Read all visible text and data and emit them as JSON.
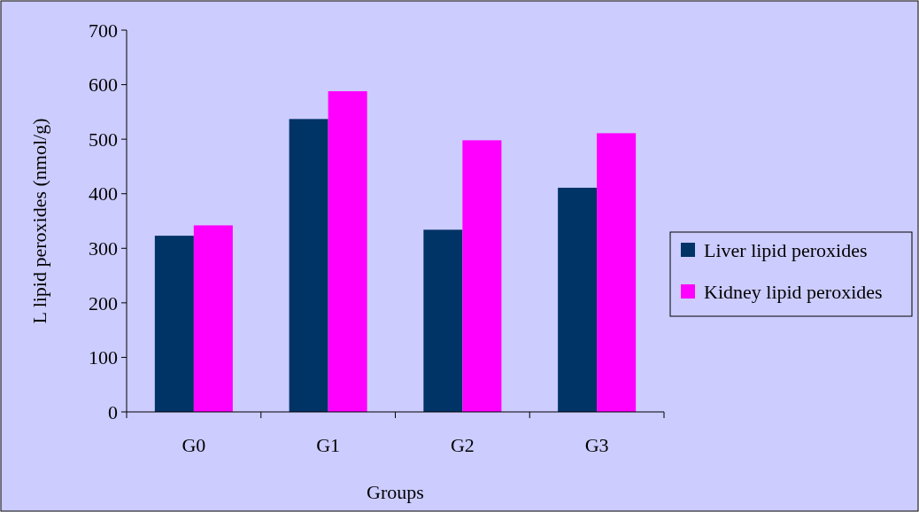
{
  "chart_data": {
    "type": "bar",
    "xlabel": "Groups",
    "ylabel": "L lipid peroxides (nmol/g)",
    "categories": [
      "G0",
      "G1",
      "G2",
      "G3"
    ],
    "series": [
      {
        "name": "Liver lipid peroxides",
        "color": "#003366",
        "values": [
          323,
          537,
          334,
          411
        ]
      },
      {
        "name": "Kidney lipid peroxides",
        "color": "#ff00ff",
        "values": [
          342,
          588,
          498,
          511
        ]
      }
    ],
    "ylim": [
      0,
      700
    ],
    "yticks": [
      0,
      100,
      200,
      300,
      400,
      500,
      600,
      700
    ],
    "grid": false,
    "legend": "right"
  }
}
